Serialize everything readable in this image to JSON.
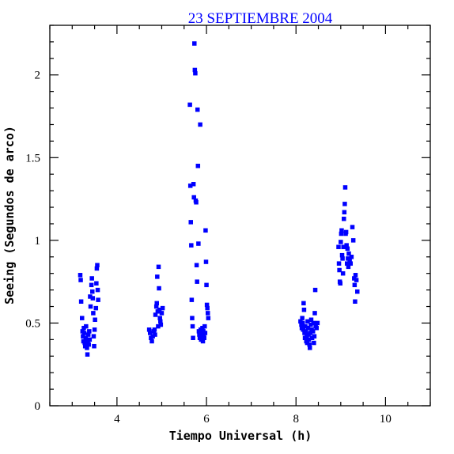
{
  "chart_data": {
    "type": "scatter",
    "title": "23 SEPTIEMBRE 2004",
    "xlabel": "Tiempo Universal (h)",
    "ylabel": "Seeing (Segundos de arco)",
    "xlim": [
      2.5,
      11.0
    ],
    "ylim": [
      0,
      2.3
    ],
    "xticks": [
      4,
      6,
      8,
      10
    ],
    "yticks": [
      0,
      0.5,
      1,
      1.5,
      2
    ],
    "xtick_labels": [
      "4",
      "6",
      "8",
      "10"
    ],
    "ytick_labels": [
      "0",
      "0.5",
      "1",
      "1.5",
      "2"
    ],
    "grid": false,
    "marker_color": "#0000ff",
    "points": [
      [
        3.18,
        0.79
      ],
      [
        3.19,
        0.76
      ],
      [
        3.2,
        0.63
      ],
      [
        3.22,
        0.53
      ],
      [
        3.23,
        0.45
      ],
      [
        3.24,
        0.42
      ],
      [
        3.25,
        0.39
      ],
      [
        3.26,
        0.47
      ],
      [
        3.27,
        0.44
      ],
      [
        3.28,
        0.38
      ],
      [
        3.29,
        0.36
      ],
      [
        3.3,
        0.41
      ],
      [
        3.31,
        0.48
      ],
      [
        3.32,
        0.4
      ],
      [
        3.33,
        0.35
      ],
      [
        3.34,
        0.31
      ],
      [
        3.35,
        0.38
      ],
      [
        3.36,
        0.43
      ],
      [
        3.37,
        0.37
      ],
      [
        3.38,
        0.45
      ],
      [
        3.39,
        0.4
      ],
      [
        3.4,
        0.66
      ],
      [
        3.41,
        0.6
      ],
      [
        3.43,
        0.73
      ],
      [
        3.44,
        0.77
      ],
      [
        3.45,
        0.69
      ],
      [
        3.46,
        0.65
      ],
      [
        3.47,
        0.56
      ],
      [
        3.48,
        0.42
      ],
      [
        3.49,
        0.36
      ],
      [
        3.5,
        0.46
      ],
      [
        3.51,
        0.52
      ],
      [
        3.53,
        0.59
      ],
      [
        3.54,
        0.74
      ],
      [
        3.55,
        0.83
      ],
      [
        3.56,
        0.85
      ],
      [
        3.57,
        0.7
      ],
      [
        3.58,
        0.64
      ],
      [
        4.72,
        0.46
      ],
      [
        4.74,
        0.44
      ],
      [
        4.76,
        0.41
      ],
      [
        4.78,
        0.39
      ],
      [
        4.8,
        0.42
      ],
      [
        4.82,
        0.45
      ],
      [
        4.84,
        0.46
      ],
      [
        4.85,
        0.43
      ],
      [
        4.86,
        0.55
      ],
      [
        4.88,
        0.6
      ],
      [
        4.89,
        0.62
      ],
      [
        4.9,
        0.78
      ],
      [
        4.91,
        0.57
      ],
      [
        4.92,
        0.48
      ],
      [
        4.93,
        0.84
      ],
      [
        4.94,
        0.71
      ],
      [
        4.95,
        0.58
      ],
      [
        4.96,
        0.53
      ],
      [
        4.97,
        0.51
      ],
      [
        4.98,
        0.49
      ],
      [
        5.0,
        0.56
      ],
      [
        5.02,
        0.59
      ],
      [
        5.63,
        1.82
      ],
      [
        5.64,
        1.33
      ],
      [
        5.65,
        1.11
      ],
      [
        5.66,
        0.97
      ],
      [
        5.67,
        0.64
      ],
      [
        5.68,
        0.53
      ],
      [
        5.69,
        0.48
      ],
      [
        5.7,
        0.41
      ],
      [
        5.71,
        1.34
      ],
      [
        5.72,
        1.26
      ],
      [
        5.73,
        2.19
      ],
      [
        5.74,
        2.03
      ],
      [
        5.75,
        2.01
      ],
      [
        5.76,
        1.24
      ],
      [
        5.77,
        1.23
      ],
      [
        5.78,
        0.85
      ],
      [
        5.79,
        0.75
      ],
      [
        5.8,
        1.79
      ],
      [
        5.81,
        1.45
      ],
      [
        5.82,
        0.98
      ],
      [
        5.83,
        0.45
      ],
      [
        5.84,
        0.43
      ],
      [
        5.85,
        0.41
      ],
      [
        5.86,
        1.7
      ],
      [
        5.87,
        0.46
      ],
      [
        5.88,
        0.4
      ],
      [
        5.89,
        0.44
      ],
      [
        5.9,
        0.42
      ],
      [
        5.91,
        0.47
      ],
      [
        5.92,
        0.39
      ],
      [
        5.93,
        0.45
      ],
      [
        5.94,
        0.43
      ],
      [
        5.95,
        0.41
      ],
      [
        5.96,
        0.48
      ],
      [
        5.97,
        0.44
      ],
      [
        5.98,
        1.06
      ],
      [
        5.99,
        0.87
      ],
      [
        6.0,
        0.73
      ],
      [
        6.01,
        0.61
      ],
      [
        6.02,
        0.59
      ],
      [
        6.03,
        0.56
      ],
      [
        6.04,
        0.53
      ],
      [
        8.1,
        0.51
      ],
      [
        8.12,
        0.49
      ],
      [
        8.13,
        0.47
      ],
      [
        8.14,
        0.53
      ],
      [
        8.15,
        0.5
      ],
      [
        8.16,
        0.46
      ],
      [
        8.17,
        0.62
      ],
      [
        8.18,
        0.58
      ],
      [
        8.19,
        0.44
      ],
      [
        8.2,
        0.41
      ],
      [
        8.21,
        0.48
      ],
      [
        8.22,
        0.45
      ],
      [
        8.23,
        0.39
      ],
      [
        8.24,
        0.42
      ],
      [
        8.25,
        0.38
      ],
      [
        8.26,
        0.51
      ],
      [
        8.27,
        0.47
      ],
      [
        8.28,
        0.43
      ],
      [
        8.29,
        0.4
      ],
      [
        8.3,
        0.37
      ],
      [
        8.31,
        0.35
      ],
      [
        8.32,
        0.44
      ],
      [
        8.33,
        0.49
      ],
      [
        8.34,
        0.52
      ],
      [
        8.35,
        0.46
      ],
      [
        8.36,
        0.41
      ],
      [
        8.38,
        0.45
      ],
      [
        8.39,
        0.5
      ],
      [
        8.4,
        0.38
      ],
      [
        8.41,
        0.42
      ],
      [
        8.42,
        0.56
      ],
      [
        8.43,
        0.7
      ],
      [
        8.44,
        0.48
      ],
      [
        8.46,
        0.47
      ],
      [
        8.48,
        0.5
      ],
      [
        8.95,
        0.96
      ],
      [
        8.96,
        0.86
      ],
      [
        8.97,
        0.82
      ],
      [
        8.98,
        0.75
      ],
      [
        8.99,
        0.74
      ],
      [
        9.0,
        0.99
      ],
      [
        9.01,
        1.04
      ],
      [
        9.02,
        1.06
      ],
      [
        9.03,
        0.91
      ],
      [
        9.04,
        0.89
      ],
      [
        9.05,
        0.8
      ],
      [
        9.06,
        0.96
      ],
      [
        9.07,
        1.13
      ],
      [
        9.08,
        1.17
      ],
      [
        9.09,
        1.22
      ],
      [
        9.1,
        1.32
      ],
      [
        9.11,
        1.04
      ],
      [
        9.12,
        1.05
      ],
      [
        9.13,
        0.97
      ],
      [
        9.14,
        0.86
      ],
      [
        9.15,
        0.95
      ],
      [
        9.16,
        0.89
      ],
      [
        9.17,
        0.84
      ],
      [
        9.18,
        0.92
      ],
      [
        9.2,
        0.88
      ],
      [
        9.22,
        0.86
      ],
      [
        9.24,
        0.9
      ],
      [
        9.26,
        1.08
      ],
      [
        9.28,
        1.0
      ],
      [
        9.3,
        0.77
      ],
      [
        9.31,
        0.73
      ],
      [
        9.32,
        0.63
      ],
      [
        9.33,
        0.79
      ],
      [
        9.35,
        0.76
      ],
      [
        9.37,
        0.69
      ]
    ]
  }
}
